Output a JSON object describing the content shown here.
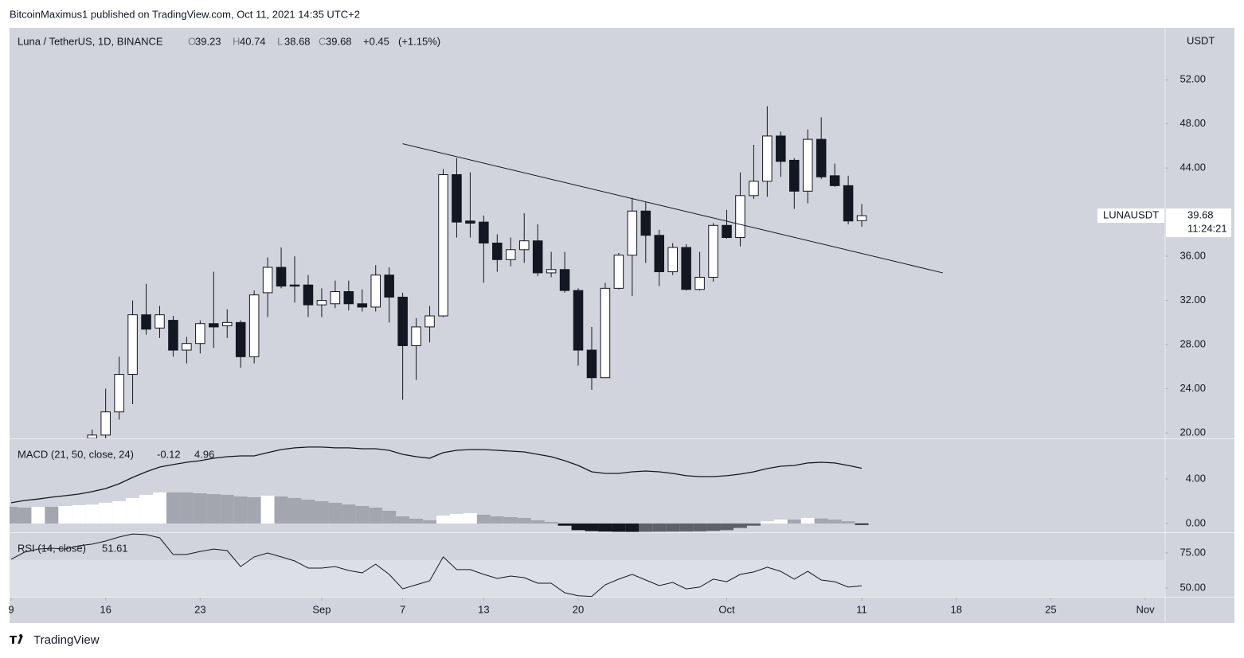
{
  "header": {
    "byline": "BitcoinMaximus1 published on TradingView.com, Oct 11, 2021 14:35 UTC+2"
  },
  "footer": {
    "brand": "TradingView"
  },
  "chart_data": [
    {
      "type": "candlestick",
      "title": "Luna / TetherUS, 1D, BINANCE",
      "ohlc_labels": [
        "O",
        "H",
        "L",
        "C"
      ],
      "change": "+0.45",
      "change_pct": "(+1.15%)",
      "currency": "USDT",
      "symbol_tag": "LUNAUSDT",
      "countdown": "11:24:21",
      "up_color": "#ffffff",
      "down_color": "#131722",
      "outline_color": "#131722",
      "x": [
        "2021-08-15",
        "2021-08-16",
        "2021-08-17",
        "2021-08-18",
        "2021-08-19",
        "2021-08-20",
        "2021-08-21",
        "2021-08-22",
        "2021-08-23",
        "2021-08-24",
        "2021-08-25",
        "2021-08-26",
        "2021-08-27",
        "2021-08-28",
        "2021-08-29",
        "2021-08-30",
        "2021-08-31",
        "2021-09-01",
        "2021-09-02",
        "2021-09-03",
        "2021-09-04",
        "2021-09-05",
        "2021-09-06",
        "2021-09-07",
        "2021-09-08",
        "2021-09-09",
        "2021-09-10",
        "2021-09-11",
        "2021-09-12",
        "2021-09-13",
        "2021-09-14",
        "2021-09-15",
        "2021-09-16",
        "2021-09-17",
        "2021-09-18",
        "2021-09-19",
        "2021-09-20",
        "2021-09-21",
        "2021-09-22",
        "2021-09-23",
        "2021-09-24",
        "2021-09-25",
        "2021-09-26",
        "2021-09-27",
        "2021-09-28",
        "2021-09-29",
        "2021-09-30",
        "2021-10-01",
        "2021-10-02",
        "2021-10-03",
        "2021-10-04",
        "2021-10-05",
        "2021-10-06",
        "2021-10-07",
        "2021-10-08",
        "2021-10-09",
        "2021-10-10",
        "2021-10-11"
      ],
      "open": [
        19.5,
        19.8,
        21.9,
        25.3,
        30.7,
        29.5,
        30.2,
        27.5,
        28.1,
        29.9,
        29.7,
        30.0,
        26.9,
        32.7,
        35.0,
        33.4,
        33.4,
        31.6,
        31.7,
        32.8,
        31.7,
        31.4,
        34.3,
        32.3,
        27.9,
        29.6,
        30.6,
        43.4,
        39.2,
        39.1,
        37.2,
        35.7,
        36.6,
        37.4,
        34.5,
        34.8,
        32.9,
        27.5,
        25.0,
        33.1,
        36.1,
        40.1,
        37.9,
        34.6,
        36.8,
        33.0,
        34.1,
        38.8,
        37.7,
        41.5,
        42.8,
        46.9,
        44.7,
        41.9,
        46.6,
        43.3,
        42.4,
        39.23
      ],
      "high": [
        20.3,
        24.0,
        26.9,
        32.0,
        33.5,
        31.5,
        30.6,
        28.7,
        30.2,
        34.6,
        31.2,
        30.2,
        32.9,
        35.9,
        36.8,
        36.0,
        34.3,
        33.1,
        33.8,
        33.8,
        33.0,
        35.2,
        35.0,
        32.7,
        30.4,
        31.5,
        43.9,
        44.9,
        43.6,
        39.7,
        38.0,
        37.7,
        39.9,
        38.9,
        36.4,
        36.4,
        33.1,
        29.6,
        33.6,
        36.3,
        41.3,
        40.9,
        38.4,
        37.2,
        37.1,
        36.4,
        39.0,
        40.2,
        43.6,
        46.1,
        49.6,
        47.3,
        44.9,
        47.5,
        48.6,
        44.4,
        43.3,
        40.74
      ],
      "low": [
        19.2,
        19.3,
        21.2,
        22.6,
        28.9,
        28.6,
        26.9,
        26.3,
        27.2,
        27.7,
        28.6,
        25.9,
        26.3,
        30.5,
        33.1,
        31.8,
        30.5,
        30.5,
        31.3,
        31.1,
        31.0,
        31.0,
        30.0,
        23.0,
        24.8,
        28.2,
        30.5,
        37.7,
        37.7,
        33.6,
        34.6,
        35.1,
        35.4,
        34.2,
        34.1,
        32.7,
        26.1,
        23.9,
        25.0,
        33.0,
        32.4,
        35.4,
        33.3,
        34.3,
        32.9,
        32.9,
        33.7,
        37.6,
        36.9,
        41.2,
        41.4,
        43.2,
        40.3,
        40.8,
        43.0,
        42.3,
        38.9,
        38.68
      ],
      "close": [
        19.8,
        21.9,
        25.3,
        30.7,
        29.4,
        30.7,
        27.5,
        28.1,
        29.9,
        29.6,
        30.0,
        26.9,
        32.5,
        35.0,
        33.3,
        33.3,
        31.6,
        32.0,
        32.8,
        31.7,
        31.4,
        34.3,
        32.3,
        27.9,
        29.6,
        30.6,
        43.4,
        39.1,
        39.0,
        37.2,
        35.7,
        36.6,
        37.4,
        34.5,
        34.8,
        32.9,
        27.5,
        25.0,
        33.1,
        36.1,
        40.1,
        37.9,
        34.6,
        36.8,
        33.0,
        34.1,
        38.8,
        37.7,
        41.5,
        42.8,
        46.9,
        44.6,
        41.9,
        46.6,
        43.2,
        42.4,
        39.2,
        39.68
      ],
      "trendline": {
        "x": [
          "2021-09-07",
          "2021-10-17"
        ],
        "y": [
          46.2,
          34.5
        ],
        "color": "#131722"
      },
      "ylim": [
        19.5,
        56.7
      ],
      "yticks": [
        {
          "value": 20,
          "label": "20.00"
        },
        {
          "value": 24,
          "label": "24.00"
        },
        {
          "value": 28,
          "label": "28.00"
        },
        {
          "value": 32,
          "label": "32.00"
        },
        {
          "value": 36,
          "label": "36.00"
        },
        {
          "value": 44,
          "label": "44.00"
        },
        {
          "value": 48,
          "label": "48.00"
        },
        {
          "value": 52,
          "label": "52.00"
        }
      ],
      "grid": false
    },
    {
      "type": "macd",
      "title": "MACD (21, 50, close, 24)",
      "x": [
        "2021-08-09",
        "2021-08-10",
        "2021-08-11",
        "2021-08-12",
        "2021-08-13",
        "2021-08-14",
        "2021-08-15",
        "2021-08-16",
        "2021-08-17",
        "2021-08-18",
        "2021-08-19",
        "2021-08-20",
        "2021-08-21",
        "2021-08-22",
        "2021-08-23",
        "2021-08-24",
        "2021-08-25",
        "2021-08-26",
        "2021-08-27",
        "2021-08-28",
        "2021-08-29",
        "2021-08-30",
        "2021-08-31",
        "2021-09-01",
        "2021-09-02",
        "2021-09-03",
        "2021-09-04",
        "2021-09-05",
        "2021-09-06",
        "2021-09-07",
        "2021-09-08",
        "2021-09-09",
        "2021-09-10",
        "2021-09-11",
        "2021-09-12",
        "2021-09-13",
        "2021-09-14",
        "2021-09-15",
        "2021-09-16",
        "2021-09-17",
        "2021-09-18",
        "2021-09-19",
        "2021-09-20",
        "2021-09-21",
        "2021-09-22",
        "2021-09-23",
        "2021-09-24",
        "2021-09-25",
        "2021-09-26",
        "2021-09-27",
        "2021-09-28",
        "2021-09-29",
        "2021-09-30",
        "2021-10-01",
        "2021-10-02",
        "2021-10-03",
        "2021-10-04",
        "2021-10-05",
        "2021-10-06",
        "2021-10-07",
        "2021-10-08",
        "2021-10-09",
        "2021-10-10",
        "2021-10-11"
      ],
      "histogram": [
        1.5,
        1.43,
        1.5,
        1.5,
        1.57,
        1.64,
        1.7,
        1.86,
        2.0,
        2.29,
        2.57,
        2.79,
        2.79,
        2.79,
        2.71,
        2.64,
        2.57,
        2.43,
        2.36,
        2.5,
        2.43,
        2.29,
        2.14,
        2.0,
        1.86,
        1.71,
        1.57,
        1.43,
        1.14,
        0.64,
        0.43,
        0.29,
        0.71,
        0.86,
        0.93,
        0.79,
        0.64,
        0.57,
        0.5,
        0.29,
        0.14,
        -0.2,
        -0.6,
        -0.68,
        -0.72,
        -0.74,
        -0.75,
        -0.74,
        -0.73,
        -0.72,
        -0.71,
        -0.7,
        -0.66,
        -0.6,
        -0.4,
        -0.2,
        0.2,
        0.35,
        0.35,
        0.5,
        0.45,
        0.35,
        0.2,
        -0.12
      ],
      "line": [
        1.86,
        2.07,
        2.2,
        2.36,
        2.5,
        2.64,
        2.86,
        3.14,
        3.57,
        4.14,
        4.64,
        5.07,
        5.29,
        5.5,
        5.64,
        5.86,
        6.0,
        6.07,
        6.07,
        6.36,
        6.64,
        6.79,
        6.86,
        6.86,
        6.79,
        6.79,
        6.71,
        6.71,
        6.57,
        6.21,
        6.0,
        5.86,
        6.36,
        6.57,
        6.64,
        6.64,
        6.57,
        6.5,
        6.43,
        6.21,
        6.0,
        5.64,
        5.21,
        4.64,
        4.5,
        4.5,
        4.64,
        4.71,
        4.64,
        4.5,
        4.29,
        4.21,
        4.21,
        4.29,
        4.43,
        4.64,
        4.93,
        5.14,
        5.21,
        5.43,
        5.5,
        5.43,
        5.21,
        4.96
      ],
      "line_color": "#131722",
      "histogram_colors": {
        "up_positive": "#ffffff",
        "down_positive": "#a3a6af",
        "down_negative": "#131722",
        "up_negative": "#5d606b"
      },
      "ylim": [
        -0.79,
        7.57
      ],
      "yticks": [
        {
          "value": 0,
          "label": "0.00"
        },
        {
          "value": 4,
          "label": "4.00"
        }
      ],
      "grid": false
    },
    {
      "type": "rsi",
      "title": "RSI (14, close)",
      "x": [
        "2021-08-09",
        "2021-08-10",
        "2021-08-11",
        "2021-08-12",
        "2021-08-13",
        "2021-08-14",
        "2021-08-15",
        "2021-08-16",
        "2021-08-17",
        "2021-08-18",
        "2021-08-19",
        "2021-08-20",
        "2021-08-21",
        "2021-08-22",
        "2021-08-23",
        "2021-08-24",
        "2021-08-25",
        "2021-08-26",
        "2021-08-27",
        "2021-08-28",
        "2021-08-29",
        "2021-08-30",
        "2021-08-31",
        "2021-09-01",
        "2021-09-02",
        "2021-09-03",
        "2021-09-04",
        "2021-09-05",
        "2021-09-06",
        "2021-09-07",
        "2021-09-08",
        "2021-09-09",
        "2021-09-10",
        "2021-09-11",
        "2021-09-12",
        "2021-09-13",
        "2021-09-14",
        "2021-09-15",
        "2021-09-16",
        "2021-09-17",
        "2021-09-18",
        "2021-09-19",
        "2021-09-20",
        "2021-09-21",
        "2021-09-22",
        "2021-09-23",
        "2021-09-24",
        "2021-09-25",
        "2021-09-26",
        "2021-09-27",
        "2021-09-28",
        "2021-09-29",
        "2021-09-30",
        "2021-10-01",
        "2021-10-02",
        "2021-10-03",
        "2021-10-04",
        "2021-10-05",
        "2021-10-06",
        "2021-10-07",
        "2021-10-08",
        "2021-10-09",
        "2021-10-10",
        "2021-10-11"
      ],
      "values": [
        70.5,
        75.6,
        77.8,
        78.4,
        77.8,
        80.1,
        81.3,
        83.5,
        86.4,
        88.6,
        88.1,
        85.8,
        73.9,
        73.9,
        76.1,
        77.8,
        76.7,
        65.3,
        72.2,
        75,
        72.2,
        69.3,
        64.2,
        64.2,
        65.3,
        62.5,
        60.8,
        67,
        59.7,
        49.4,
        52.3,
        55.1,
        72.2,
        63.1,
        63.1,
        59.7,
        56.8,
        58.5,
        57.4,
        53.4,
        53.4,
        46.6,
        44.5,
        44.0,
        52.3,
        56.3,
        59.7,
        55.7,
        51.7,
        54,
        49.4,
        50.6,
        56.3,
        54.5,
        59.7,
        61.4,
        64.8,
        61.9,
        56.3,
        61.9,
        55.7,
        54.5,
        50.6,
        51.61
      ],
      "color": "#131722",
      "band": [
        30,
        70
      ],
      "band_color": "#dcdfe6",
      "ylim": [
        43.75,
        89.2
      ],
      "yticks": [
        {
          "value": 50,
          "label": "50.00"
        },
        {
          "value": 75,
          "label": "75.00"
        }
      ],
      "xlim": [
        "2021-08-09",
        "2021-11-02"
      ],
      "xticks": [
        {
          "value": "2021-08-09",
          "label": "9"
        },
        {
          "value": "2021-08-16",
          "label": "16"
        },
        {
          "value": "2021-08-23",
          "label": "23"
        },
        {
          "value": "2021-09-01",
          "label": "Sep"
        },
        {
          "value": "2021-09-07",
          "label": "7"
        },
        {
          "value": "2021-09-13",
          "label": "13"
        },
        {
          "value": "2021-09-20",
          "label": "20"
        },
        {
          "value": "2021-10-01",
          "label": "Oct"
        },
        {
          "value": "2021-10-11",
          "label": "11"
        },
        {
          "value": "2021-10-18",
          "label": "18"
        },
        {
          "value": "2021-10-25",
          "label": "25"
        },
        {
          "value": "2021-11-01",
          "label": "Nov"
        }
      ],
      "grid": false
    }
  ]
}
